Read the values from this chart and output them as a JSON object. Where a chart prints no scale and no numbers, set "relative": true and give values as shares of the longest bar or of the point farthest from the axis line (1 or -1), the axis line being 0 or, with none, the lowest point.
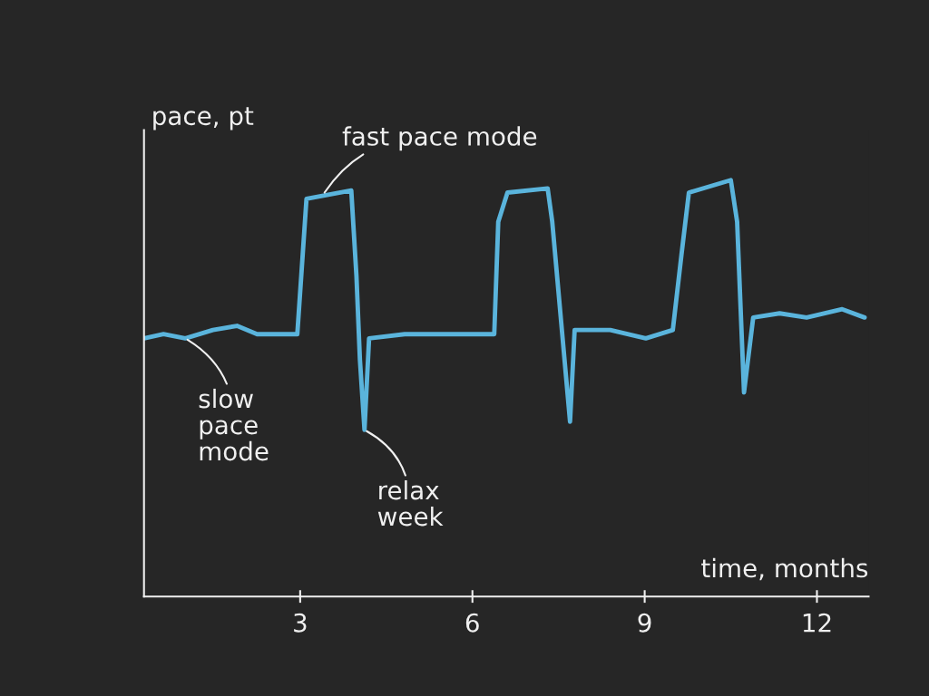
{
  "chart_data": {
    "type": "line",
    "relative": true,
    "xlabel": "time, months",
    "ylabel": "pace, pt",
    "xlim": [
      0.28,
      12.9
    ],
    "xticks": [
      3,
      6,
      9,
      12
    ],
    "grid": false,
    "marker": "none",
    "line_style": "solid",
    "series": [
      {
        "color": "#5ab4dc",
        "x": [
          0.28,
          0.62,
          1.0,
          1.48,
          1.9,
          2.25,
          2.88,
          2.95,
          3.11,
          3.89,
          3.98,
          4.04,
          4.12,
          4.2,
          4.82,
          5.6,
          6.38,
          6.45,
          6.61,
          7.31,
          7.39,
          7.7,
          7.78,
          8.4,
          9.02,
          9.49,
          9.64,
          9.77,
          10.5,
          10.61,
          10.73,
          10.89,
          11.35,
          11.82,
          12.44,
          12.83
        ],
        "values": [
          0.62,
          0.63,
          0.62,
          0.64,
          0.65,
          0.63,
          0.63,
          0.63,
          0.955,
          0.975,
          0.77,
          0.57,
          0.4,
          0.62,
          0.63,
          0.63,
          0.63,
          0.9,
          0.97,
          0.98,
          0.9,
          0.42,
          0.64,
          0.64,
          0.62,
          0.64,
          0.82,
          0.97,
          1.0,
          0.9,
          0.49,
          0.67,
          0.68,
          0.67,
          0.69,
          0.67
        ]
      }
    ],
    "annotations": [
      {
        "text": "fast pace mode",
        "x": 3.4,
        "y": 0.965
      },
      {
        "text": "slow\npace\nmode",
        "x": 1.0,
        "y": 0.62
      },
      {
        "text": "relax\nweek",
        "x": 4.12,
        "y": 0.4
      }
    ]
  }
}
